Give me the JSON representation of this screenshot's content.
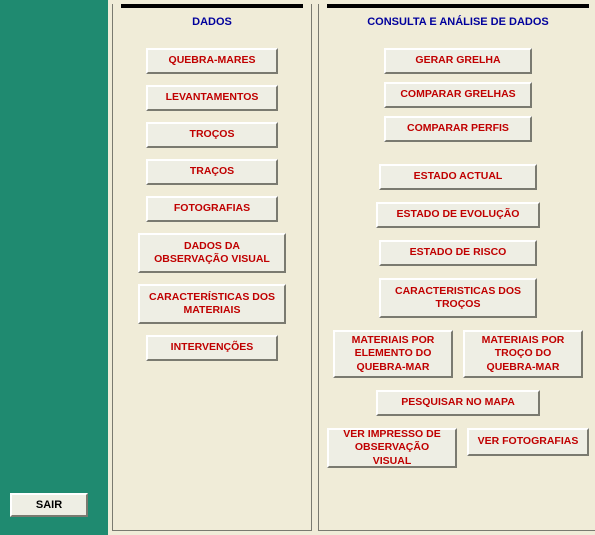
{
  "sidebar": {
    "sair_label": "SAIR"
  },
  "panels": {
    "left_title": "DADOS",
    "right_title": "CONSULTA E ANÁLISE DE DADOS"
  },
  "dados": {
    "quebra_mares": "QUEBRA-MARES",
    "levantamentos": "LEVANTAMENTOS",
    "trocos": "TROÇOS",
    "tracos": "TRAÇOS",
    "fotografias": "FOTOGRAFIAS",
    "dados_obs": "DADOS DA OBSERVAÇÃO VISUAL",
    "caracteristicas_mat": "CARACTERÍSTICAS DOS MATERIAIS",
    "intervencoes": "INTERVENÇÕES"
  },
  "consulta": {
    "gerar_grelha": "GERAR GRELHA",
    "comparar_grelhas": "COMPARAR GRELHAS",
    "comparar_perfis": "COMPARAR PERFIS",
    "estado_actual": "ESTADO ACTUAL",
    "estado_evolucao": "ESTADO DE EVOLUÇÃO",
    "estado_risco": "ESTADO DE RISCO",
    "caract_trocos": "CARACTERISTICAS DOS TROÇOS",
    "mat_elemento": "MATERIAIS POR ELEMENTO DO QUEBRA-MAR",
    "mat_troco": "MATERIAIS POR TROÇO DO QUEBRA-MAR",
    "pesquisar_mapa": "PESQUISAR NO MAPA",
    "ver_impresso": "VER IMPRESSO DE OBSERVAÇÃO VISUAL",
    "ver_fotografias": "VER FOTOGRAFIAS"
  },
  "colors": {
    "sidebar_bg": "#1f8a70",
    "panel_bg": "#f0ecd8",
    "btn_bg": "#eeeee4",
    "btn_text": "#c00000",
    "title_text": "#00009c",
    "title_bar": "#000000"
  }
}
